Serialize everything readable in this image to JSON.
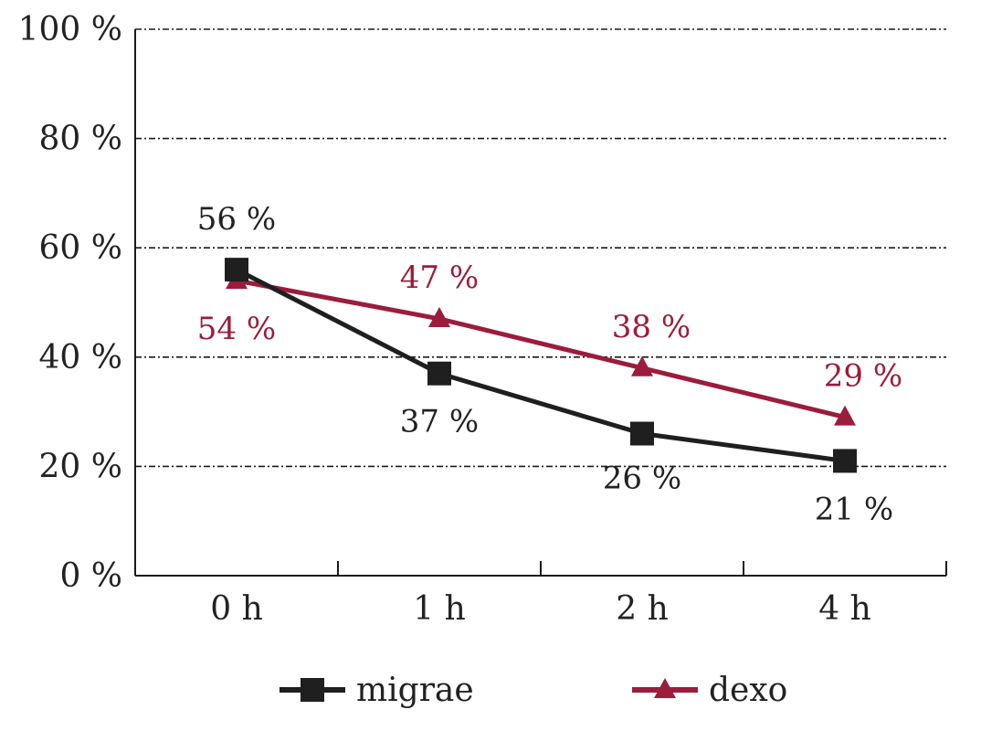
{
  "chart_data": {
    "type": "line",
    "title": "",
    "xlabel": "",
    "ylabel": "",
    "categories": [
      "0 h",
      "1 h",
      "2 h",
      "4 h"
    ],
    "ylim": [
      0,
      100
    ],
    "yticks": [
      0,
      20,
      40,
      60,
      80,
      100
    ],
    "ytick_labels": [
      "0 %",
      "20 %",
      "40 %",
      "60 %",
      "80 %",
      "100 %"
    ],
    "grid": "horizontal dash-dot",
    "legend_position": "bottom",
    "series": [
      {
        "name": "migrae",
        "values": [
          56,
          37,
          26,
          21
        ],
        "labels": [
          "56 %",
          "37 %",
          "26 %",
          "21 %"
        ],
        "color": "#1f1f1f",
        "marker": "square"
      },
      {
        "name": "dexo",
        "values": [
          54,
          47,
          38,
          29
        ],
        "labels": [
          "54 %",
          "47 %",
          "38 %",
          "29 %"
        ],
        "color": "#9b1c3c",
        "marker": "triangle"
      }
    ]
  }
}
